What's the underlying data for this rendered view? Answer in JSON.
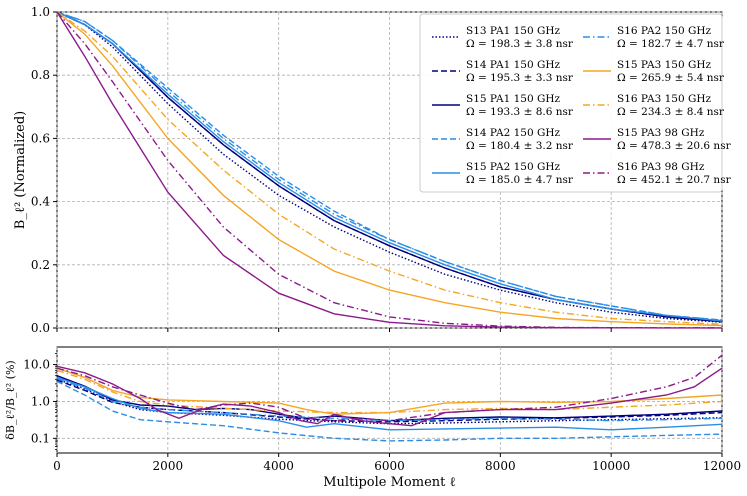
{
  "chart_data": [
    {
      "type": "line",
      "panel": "top",
      "ylabel": "B_ℓ² (Normalized)",
      "xlim": [
        0,
        12000
      ],
      "ylim": [
        0,
        1.0
      ],
      "xticks": [
        0,
        2000,
        4000,
        6000,
        8000,
        10000,
        12000
      ],
      "yticks": [
        "0.0",
        "0.2",
        "0.4",
        "0.6",
        "0.8",
        "1.0"
      ],
      "grid": true,
      "legend_position": "top-right",
      "series": [
        {
          "name": "S13 PA1 150 GHz",
          "omega": "Ω = 198.3 ± 3.8 nsr",
          "color": "#000080",
          "dash": "dotted",
          "x": [
            0,
            500,
            1000,
            2000,
            3000,
            4000,
            5000,
            6000,
            7000,
            8000,
            9000,
            10000,
            11000,
            12000
          ],
          "y": [
            1.0,
            0.96,
            0.89,
            0.71,
            0.55,
            0.42,
            0.32,
            0.24,
            0.17,
            0.12,
            0.08,
            0.05,
            0.03,
            0.018
          ]
        },
        {
          "name": "S14 PA1 150 GHz",
          "omega": "Ω = 195.3 ± 3.3 nsr",
          "color": "#000080",
          "dash": "dashed",
          "x": [
            0,
            500,
            1000,
            2000,
            3000,
            4000,
            5000,
            6000,
            7000,
            8000,
            9000,
            10000,
            11000,
            12000
          ],
          "y": [
            1.0,
            0.96,
            0.9,
            0.73,
            0.58,
            0.45,
            0.34,
            0.26,
            0.19,
            0.13,
            0.09,
            0.06,
            0.035,
            0.02
          ]
        },
        {
          "name": "S15 PA1 150 GHz",
          "omega": "Ω = 193.3 ± 8.6 nsr",
          "color": "#000080",
          "dash": "solid",
          "x": [
            0,
            500,
            1000,
            2000,
            3000,
            4000,
            5000,
            6000,
            7000,
            8000,
            9000,
            10000,
            11000,
            12000
          ],
          "y": [
            1.0,
            0.96,
            0.9,
            0.73,
            0.58,
            0.45,
            0.34,
            0.26,
            0.19,
            0.13,
            0.09,
            0.06,
            0.035,
            0.02
          ]
        },
        {
          "name": "S14 PA2 150 GHz",
          "omega": "Ω = 180.4 ± 3.2 nsr",
          "color": "#2a8ee8",
          "dash": "dashed",
          "x": [
            0,
            500,
            1000,
            2000,
            3000,
            4000,
            5000,
            6000,
            7000,
            8000,
            9000,
            10000,
            11000,
            12000
          ],
          "y": [
            1.0,
            0.97,
            0.91,
            0.76,
            0.61,
            0.48,
            0.37,
            0.28,
            0.21,
            0.15,
            0.1,
            0.07,
            0.04,
            0.025
          ]
        },
        {
          "name": "S15 PA2 150 GHz",
          "omega": "Ω = 185.0 ± 4.7 nsr",
          "color": "#2a8ee8",
          "dash": "solid",
          "x": [
            0,
            500,
            1000,
            2000,
            3000,
            4000,
            5000,
            6000,
            7000,
            8000,
            9000,
            10000,
            11000,
            12000
          ],
          "y": [
            1.0,
            0.96,
            0.9,
            0.74,
            0.59,
            0.46,
            0.35,
            0.27,
            0.2,
            0.14,
            0.09,
            0.06,
            0.04,
            0.022
          ]
        },
        {
          "name": "S16 PA2 150 GHz",
          "omega": "Ω = 182.7 ± 4.7 nsr",
          "color": "#2a8ee8",
          "dash": "dashdot",
          "x": [
            0,
            500,
            1000,
            2000,
            3000,
            4000,
            5000,
            6000,
            7000,
            8000,
            9000,
            10000,
            11000,
            12000
          ],
          "y": [
            1.0,
            0.97,
            0.91,
            0.75,
            0.6,
            0.47,
            0.36,
            0.28,
            0.21,
            0.15,
            0.1,
            0.07,
            0.04,
            0.025
          ]
        },
        {
          "name": "S15 PA3 150 GHz",
          "omega": "Ω = 265.9 ± 5.4 nsr",
          "color": "#f5a623",
          "dash": "solid",
          "x": [
            0,
            500,
            1000,
            2000,
            3000,
            4000,
            5000,
            6000,
            7000,
            8000,
            9000,
            10000,
            11000,
            12000
          ],
          "y": [
            1.0,
            0.93,
            0.83,
            0.6,
            0.42,
            0.28,
            0.18,
            0.12,
            0.08,
            0.05,
            0.03,
            0.02,
            0.013,
            0.008
          ]
        },
        {
          "name": "S16 PA3 150 GHz",
          "omega": "Ω = 234.3 ± 8.4 nsr",
          "color": "#f5a623",
          "dash": "dashdot",
          "x": [
            0,
            500,
            1000,
            2000,
            3000,
            4000,
            5000,
            6000,
            7000,
            8000,
            9000,
            10000,
            11000,
            12000
          ],
          "y": [
            1.0,
            0.94,
            0.86,
            0.66,
            0.5,
            0.36,
            0.25,
            0.18,
            0.12,
            0.08,
            0.05,
            0.03,
            0.02,
            0.012
          ]
        },
        {
          "name": "S15 PA3 98 GHz",
          "omega": "Ω = 478.3 ± 20.6 nsr",
          "color": "#8b1a8b",
          "dash": "solid",
          "x": [
            0,
            500,
            1000,
            2000,
            3000,
            4000,
            5000,
            6000,
            7000,
            8000,
            9000,
            10000,
            11000,
            12000
          ],
          "y": [
            1.0,
            0.86,
            0.71,
            0.43,
            0.23,
            0.11,
            0.045,
            0.018,
            0.007,
            0.003,
            0.001,
            0.0005,
            0.0003,
            0.0002
          ]
        },
        {
          "name": "S16 PA3 98 GHz",
          "omega": "Ω = 452.1 ± 20.7 nsr",
          "color": "#8b1a8b",
          "dash": "dashdot",
          "x": [
            0,
            500,
            1000,
            2000,
            3000,
            4000,
            5000,
            6000,
            7000,
            8000,
            9000,
            10000,
            11000,
            12000
          ],
          "y": [
            1.0,
            0.9,
            0.78,
            0.53,
            0.32,
            0.17,
            0.08,
            0.035,
            0.015,
            0.006,
            0.002,
            0.001,
            0.0005,
            0.0003
          ]
        }
      ]
    },
    {
      "type": "line",
      "panel": "bottom",
      "xlabel": "Multipole Moment ℓ",
      "ylabel": "δB_ℓ²/B_ℓ² (%)",
      "yscale": "log",
      "xlim": [
        0,
        12000
      ],
      "ylim": [
        0.04,
        30
      ],
      "xticks": [
        0,
        2000,
        4000,
        6000,
        8000,
        10000,
        12000
      ],
      "xtick_labels": [
        "0",
        "2000",
        "4000",
        "6000",
        "8000",
        "10000",
        "12000"
      ],
      "yticks": [
        0.1,
        1.0,
        10.0
      ],
      "ytick_labels": [
        "0.1",
        "1.0",
        "10.0"
      ],
      "grid": true,
      "series": [
        {
          "name": "S13 PA1 150 GHz",
          "color": "#000080",
          "dash": "dotted",
          "x": [
            0,
            500,
            1000,
            1500,
            2000,
            3000,
            4000,
            5000,
            6000,
            7000,
            8000,
            9000,
            10000,
            11000,
            12000
          ],
          "y": [
            4.0,
            2.2,
            1.0,
            0.6,
            0.5,
            0.42,
            0.33,
            0.28,
            0.25,
            0.26,
            0.28,
            0.3,
            0.32,
            0.34,
            0.36
          ]
        },
        {
          "name": "S14 PA1 150 GHz",
          "color": "#000080",
          "dash": "dashed",
          "x": [
            0,
            500,
            1000,
            1500,
            2000,
            3000,
            4000,
            5000,
            6000,
            7000,
            8000,
            9000,
            10000,
            11000,
            12000
          ],
          "y": [
            3.8,
            2.0,
            0.95,
            0.7,
            0.6,
            0.5,
            0.38,
            0.3,
            0.28,
            0.3,
            0.33,
            0.35,
            0.38,
            0.42,
            0.5
          ]
        },
        {
          "name": "S15 PA1 150 GHz",
          "color": "#000080",
          "dash": "solid",
          "x": [
            0,
            500,
            1000,
            1500,
            2000,
            2500,
            3000,
            3500,
            4000,
            4500,
            5000,
            5500,
            6000,
            7000,
            8000,
            9000,
            10000,
            11000,
            12000
          ],
          "y": [
            5.0,
            2.6,
            1.1,
            0.8,
            0.75,
            0.6,
            0.65,
            0.6,
            0.45,
            0.35,
            0.4,
            0.35,
            0.3,
            0.35,
            0.38,
            0.36,
            0.4,
            0.45,
            0.55
          ]
        },
        {
          "name": "S14 PA2 150 GHz",
          "color": "#2a8ee8",
          "dash": "dashed",
          "x": [
            0,
            500,
            1000,
            1500,
            2000,
            3000,
            4000,
            5000,
            6000,
            7000,
            8000,
            9000,
            10000,
            11000,
            12000
          ],
          "y": [
            3.5,
            1.5,
            0.55,
            0.32,
            0.28,
            0.22,
            0.14,
            0.1,
            0.085,
            0.09,
            0.1,
            0.1,
            0.11,
            0.12,
            0.13
          ]
        },
        {
          "name": "S15 PA2 150 GHz",
          "color": "#2a8ee8",
          "dash": "solid",
          "x": [
            0,
            500,
            1000,
            1500,
            2000,
            3000,
            4000,
            4500,
            5000,
            6000,
            7000,
            8000,
            9000,
            10000,
            11000,
            12000
          ],
          "y": [
            4.5,
            2.5,
            1.2,
            0.65,
            0.5,
            0.45,
            0.3,
            0.2,
            0.25,
            0.17,
            0.18,
            0.19,
            0.2,
            0.17,
            0.2,
            0.24
          ]
        },
        {
          "name": "S16 PA2 150 GHz",
          "color": "#2a8ee8",
          "dash": "dashdot",
          "x": [
            0,
            500,
            1000,
            1500,
            2000,
            3000,
            4000,
            5000,
            6000,
            7000,
            8000,
            9000,
            10000,
            11000,
            12000
          ],
          "y": [
            4.2,
            2.3,
            1.0,
            0.7,
            0.6,
            0.5,
            0.4,
            0.35,
            0.3,
            0.32,
            0.35,
            0.33,
            0.3,
            0.32,
            0.35
          ]
        },
        {
          "name": "S15 PA3 150 GHz",
          "color": "#f5a623",
          "dash": "solid",
          "x": [
            0,
            500,
            1000,
            1500,
            2000,
            2500,
            3000,
            4000,
            4500,
            5000,
            6000,
            7000,
            8000,
            9000,
            10000,
            11000,
            12000
          ],
          "y": [
            8.0,
            4.5,
            2.0,
            1.3,
            1.1,
            1.05,
            1.0,
            0.9,
            0.6,
            0.45,
            0.5,
            0.9,
            1.0,
            0.95,
            1.0,
            1.2,
            1.5
          ]
        },
        {
          "name": "S16 PA3 150 GHz",
          "color": "#f5a623",
          "dash": "dashdot",
          "x": [
            0,
            500,
            1000,
            1500,
            2000,
            3000,
            4000,
            5000,
            6000,
            7000,
            8000,
            9000,
            10000,
            11000,
            12000
          ],
          "y": [
            7.0,
            4.0,
            1.8,
            1.0,
            0.8,
            0.65,
            0.55,
            0.5,
            0.5,
            0.6,
            0.65,
            0.6,
            0.7,
            0.8,
            1.0
          ]
        },
        {
          "name": "S15 PA3 98 GHz",
          "color": "#8b1a8b",
          "dash": "solid",
          "x": [
            0,
            500,
            1000,
            1500,
            1800,
            2200,
            2600,
            3000,
            3500,
            4000,
            4400,
            4700,
            5000,
            5500,
            6000,
            6400,
            7000,
            8000,
            9000,
            10000,
            11000,
            11500,
            12000
          ],
          "y": [
            9.0,
            6.0,
            3.0,
            1.2,
            0.6,
            0.35,
            0.6,
            0.85,
            0.75,
            0.5,
            0.3,
            0.25,
            0.45,
            0.3,
            0.25,
            0.22,
            0.5,
            0.6,
            0.6,
            0.9,
            1.5,
            2.5,
            8.0
          ]
        },
        {
          "name": "S16 PA3 98 GHz",
          "color": "#8b1a8b",
          "dash": "dashdot",
          "x": [
            0,
            500,
            1000,
            1500,
            2000,
            2500,
            3000,
            3500,
            4000,
            4500,
            5000,
            5500,
            6000,
            7000,
            8000,
            9000,
            10000,
            11000,
            11500,
            12000
          ],
          "y": [
            8.0,
            5.0,
            2.5,
            1.5,
            0.9,
            0.6,
            0.8,
            0.9,
            0.7,
            0.35,
            0.3,
            0.35,
            0.3,
            0.5,
            0.6,
            0.7,
            1.2,
            2.5,
            4.5,
            18.0
          ]
        }
      ]
    }
  ]
}
